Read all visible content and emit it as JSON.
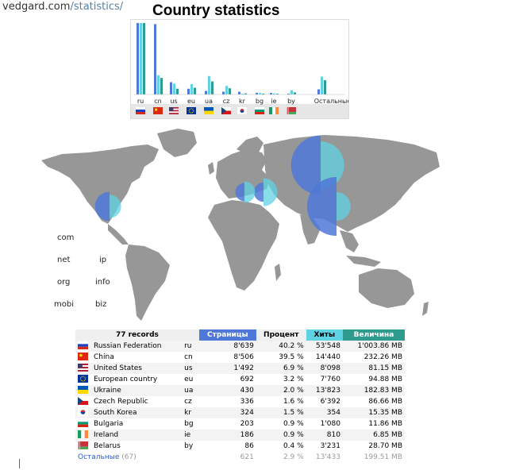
{
  "breadcrumb": {
    "host": "vedgard.com",
    "path": "/statistics/"
  },
  "title": "Country statistics",
  "colors": {
    "pages": "#4f78d8",
    "hits": "#5fd3e3",
    "size": "#2f9a8e",
    "map_land": "#979797"
  },
  "chart_data": {
    "type": "bar",
    "categories": [
      "ru",
      "cn",
      "us",
      "eu",
      "ua",
      "cz",
      "kr",
      "bg",
      "ie",
      "by",
      "Остальные"
    ],
    "series": [
      {
        "name": "Страницы",
        "values": [
          8639,
          8506,
          1492,
          692,
          430,
          336,
          324,
          203,
          186,
          86,
          621
        ]
      },
      {
        "name": "Хиты",
        "values": [
          53548,
          14440,
          8098,
          7760,
          13823,
          6392,
          354,
          1080,
          810,
          3231,
          13433
        ]
      },
      {
        "name": "Величина",
        "values": [
          1003.86,
          232.26,
          81.15,
          94.88,
          182.83,
          86.66,
          15.35,
          11.86,
          6.85,
          28.7,
          199.51
        ]
      }
    ]
  },
  "map": {
    "bubbles": [
      {
        "code": "ru",
        "pages_pct": 40.2,
        "hits_pct": 59.8
      },
      {
        "code": "cn",
        "pages_pct": 39.5,
        "hits_pct": 16.1
      },
      {
        "code": "us",
        "pages_pct": 6.9,
        "hits_pct": 9.0
      },
      {
        "code": "ua",
        "pages_pct": 2.0,
        "hits_pct": 15.4
      },
      {
        "code": "cz",
        "pages_pct": 1.6,
        "hits_pct": 7.1
      }
    ]
  },
  "tld_labels": [
    "com",
    "net",
    "ip",
    "org",
    "info",
    "mobi",
    "biz"
  ],
  "table": {
    "headers": {
      "records": "77 records",
      "pages": "Страницы",
      "percent": "Процент",
      "hits": "Хиты",
      "size": "Величина"
    },
    "rows": [
      {
        "flag": "ru",
        "country": "Russian Federation",
        "code": "ru",
        "pages": "8'639",
        "percent": "40.2 %",
        "hits": "53'548",
        "size": "1'003.86 MB"
      },
      {
        "flag": "cn",
        "country": "China",
        "code": "cn",
        "pages": "8'506",
        "percent": "39.5 %",
        "hits": "14'440",
        "size": "232.26 MB"
      },
      {
        "flag": "us",
        "country": "United States",
        "code": "us",
        "pages": "1'492",
        "percent": "6.9 %",
        "hits": "8'098",
        "size": "81.15 MB"
      },
      {
        "flag": "eu",
        "country": "European country",
        "code": "eu",
        "pages": "692",
        "percent": "3.2 %",
        "hits": "7'760",
        "size": "94.88 MB"
      },
      {
        "flag": "ua",
        "country": "Ukraine",
        "code": "ua",
        "pages": "430",
        "percent": "2.0 %",
        "hits": "13'823",
        "size": "182.83 MB"
      },
      {
        "flag": "cz",
        "country": "Czech Republic",
        "code": "cz",
        "pages": "336",
        "percent": "1.6 %",
        "hits": "6'392",
        "size": "86.66 MB"
      },
      {
        "flag": "kr",
        "country": "South Korea",
        "code": "kr",
        "pages": "324",
        "percent": "1.5 %",
        "hits": "354",
        "size": "15.35 MB"
      },
      {
        "flag": "bg",
        "country": "Bulgaria",
        "code": "bg",
        "pages": "203",
        "percent": "0.9 %",
        "hits": "1'080",
        "size": "11.86 MB"
      },
      {
        "flag": "ie",
        "country": "Ireland",
        "code": "ie",
        "pages": "186",
        "percent": "0.9 %",
        "hits": "810",
        "size": "6.85 MB"
      },
      {
        "flag": "by",
        "country": "Belarus",
        "code": "by",
        "pages": "86",
        "percent": "0.4 %",
        "hits": "3'231",
        "size": "28.70 MB"
      }
    ],
    "others": {
      "label": "Остальные",
      "count": "(67)",
      "pages": "621",
      "percent": "2.9 %",
      "hits": "13'433",
      "size": "199.51 MB"
    }
  }
}
